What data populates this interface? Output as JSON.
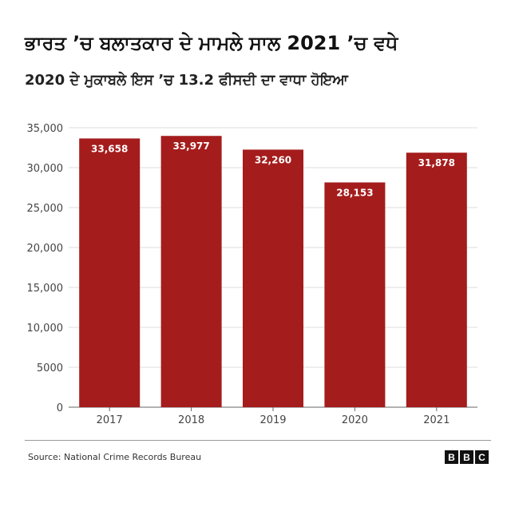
{
  "header": {
    "title": "ਭਾਰਤ ’ਚ ਬਲਾਤਕਾਰ ਦੇ ਮਾਮਲੇ ਸਾਲ 2021 ’ਚ ਵਧੇ",
    "subtitle": "2020 ਦੇ ਮੁਕਾਬਲੇ ਇਸ ’ਚ 13.2 ਫੀਸਦੀ ਦਾ ਵਾਧਾ ਹੋਇਆ"
  },
  "chart_data": {
    "type": "bar",
    "categories": [
      "2017",
      "2018",
      "2019",
      "2020",
      "2021"
    ],
    "values": [
      33658,
      33977,
      32260,
      28153,
      31878
    ],
    "value_labels": [
      "33,658",
      "33,977",
      "32,260",
      "28,153",
      "31,878"
    ],
    "ylim": [
      0,
      35000
    ],
    "yticks": [
      0,
      5000,
      10000,
      15000,
      20000,
      25000,
      30000,
      35000
    ],
    "ytick_labels": [
      "0",
      "5000",
      "10,000",
      "15,000",
      "20,000",
      "25,000",
      "30,000",
      "35,000"
    ],
    "grid": true,
    "bar_color": "#a51c1c",
    "grid_color": "#dddddd"
  },
  "footer": {
    "source": "Source: National Crime Records Bureau",
    "logo": [
      "B",
      "B",
      "C"
    ]
  }
}
